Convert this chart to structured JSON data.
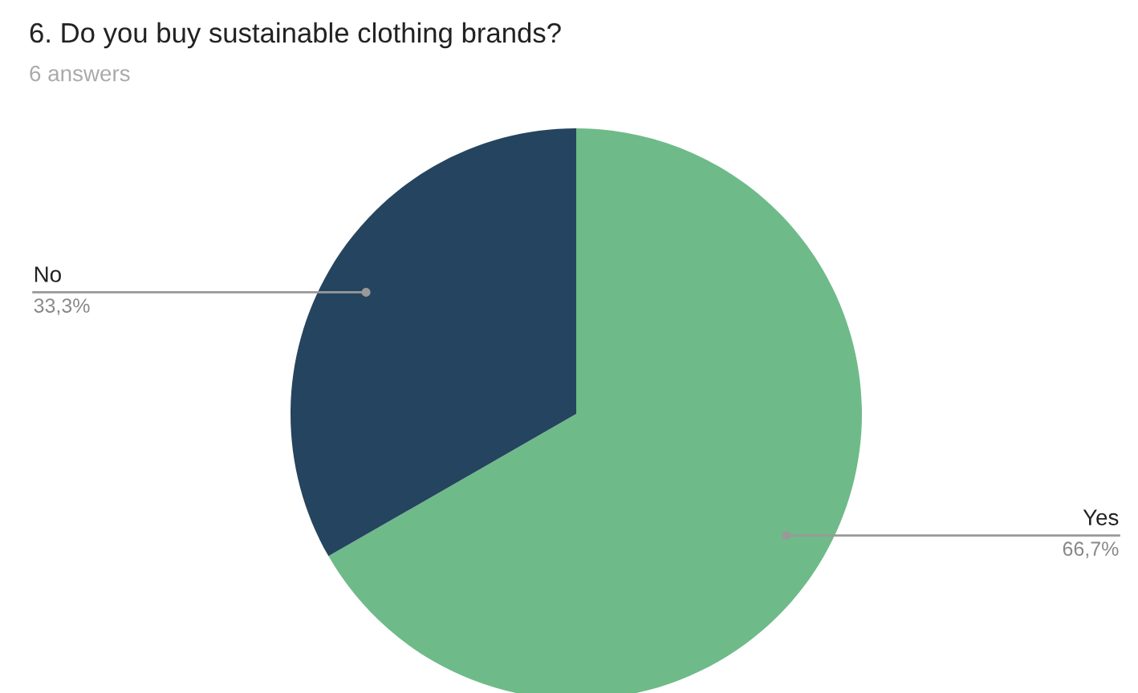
{
  "chart_data": {
    "type": "pie",
    "title": "6. Do you buy sustainable clothing brands?",
    "subtitle": "6 answers",
    "categories": [
      "Yes",
      "No"
    ],
    "values": [
      66.7,
      33.3
    ],
    "colors": [
      "#6fba89",
      "#25445f"
    ],
    "value_labels": [
      "66,7%",
      "33,3%"
    ],
    "legend": false
  }
}
